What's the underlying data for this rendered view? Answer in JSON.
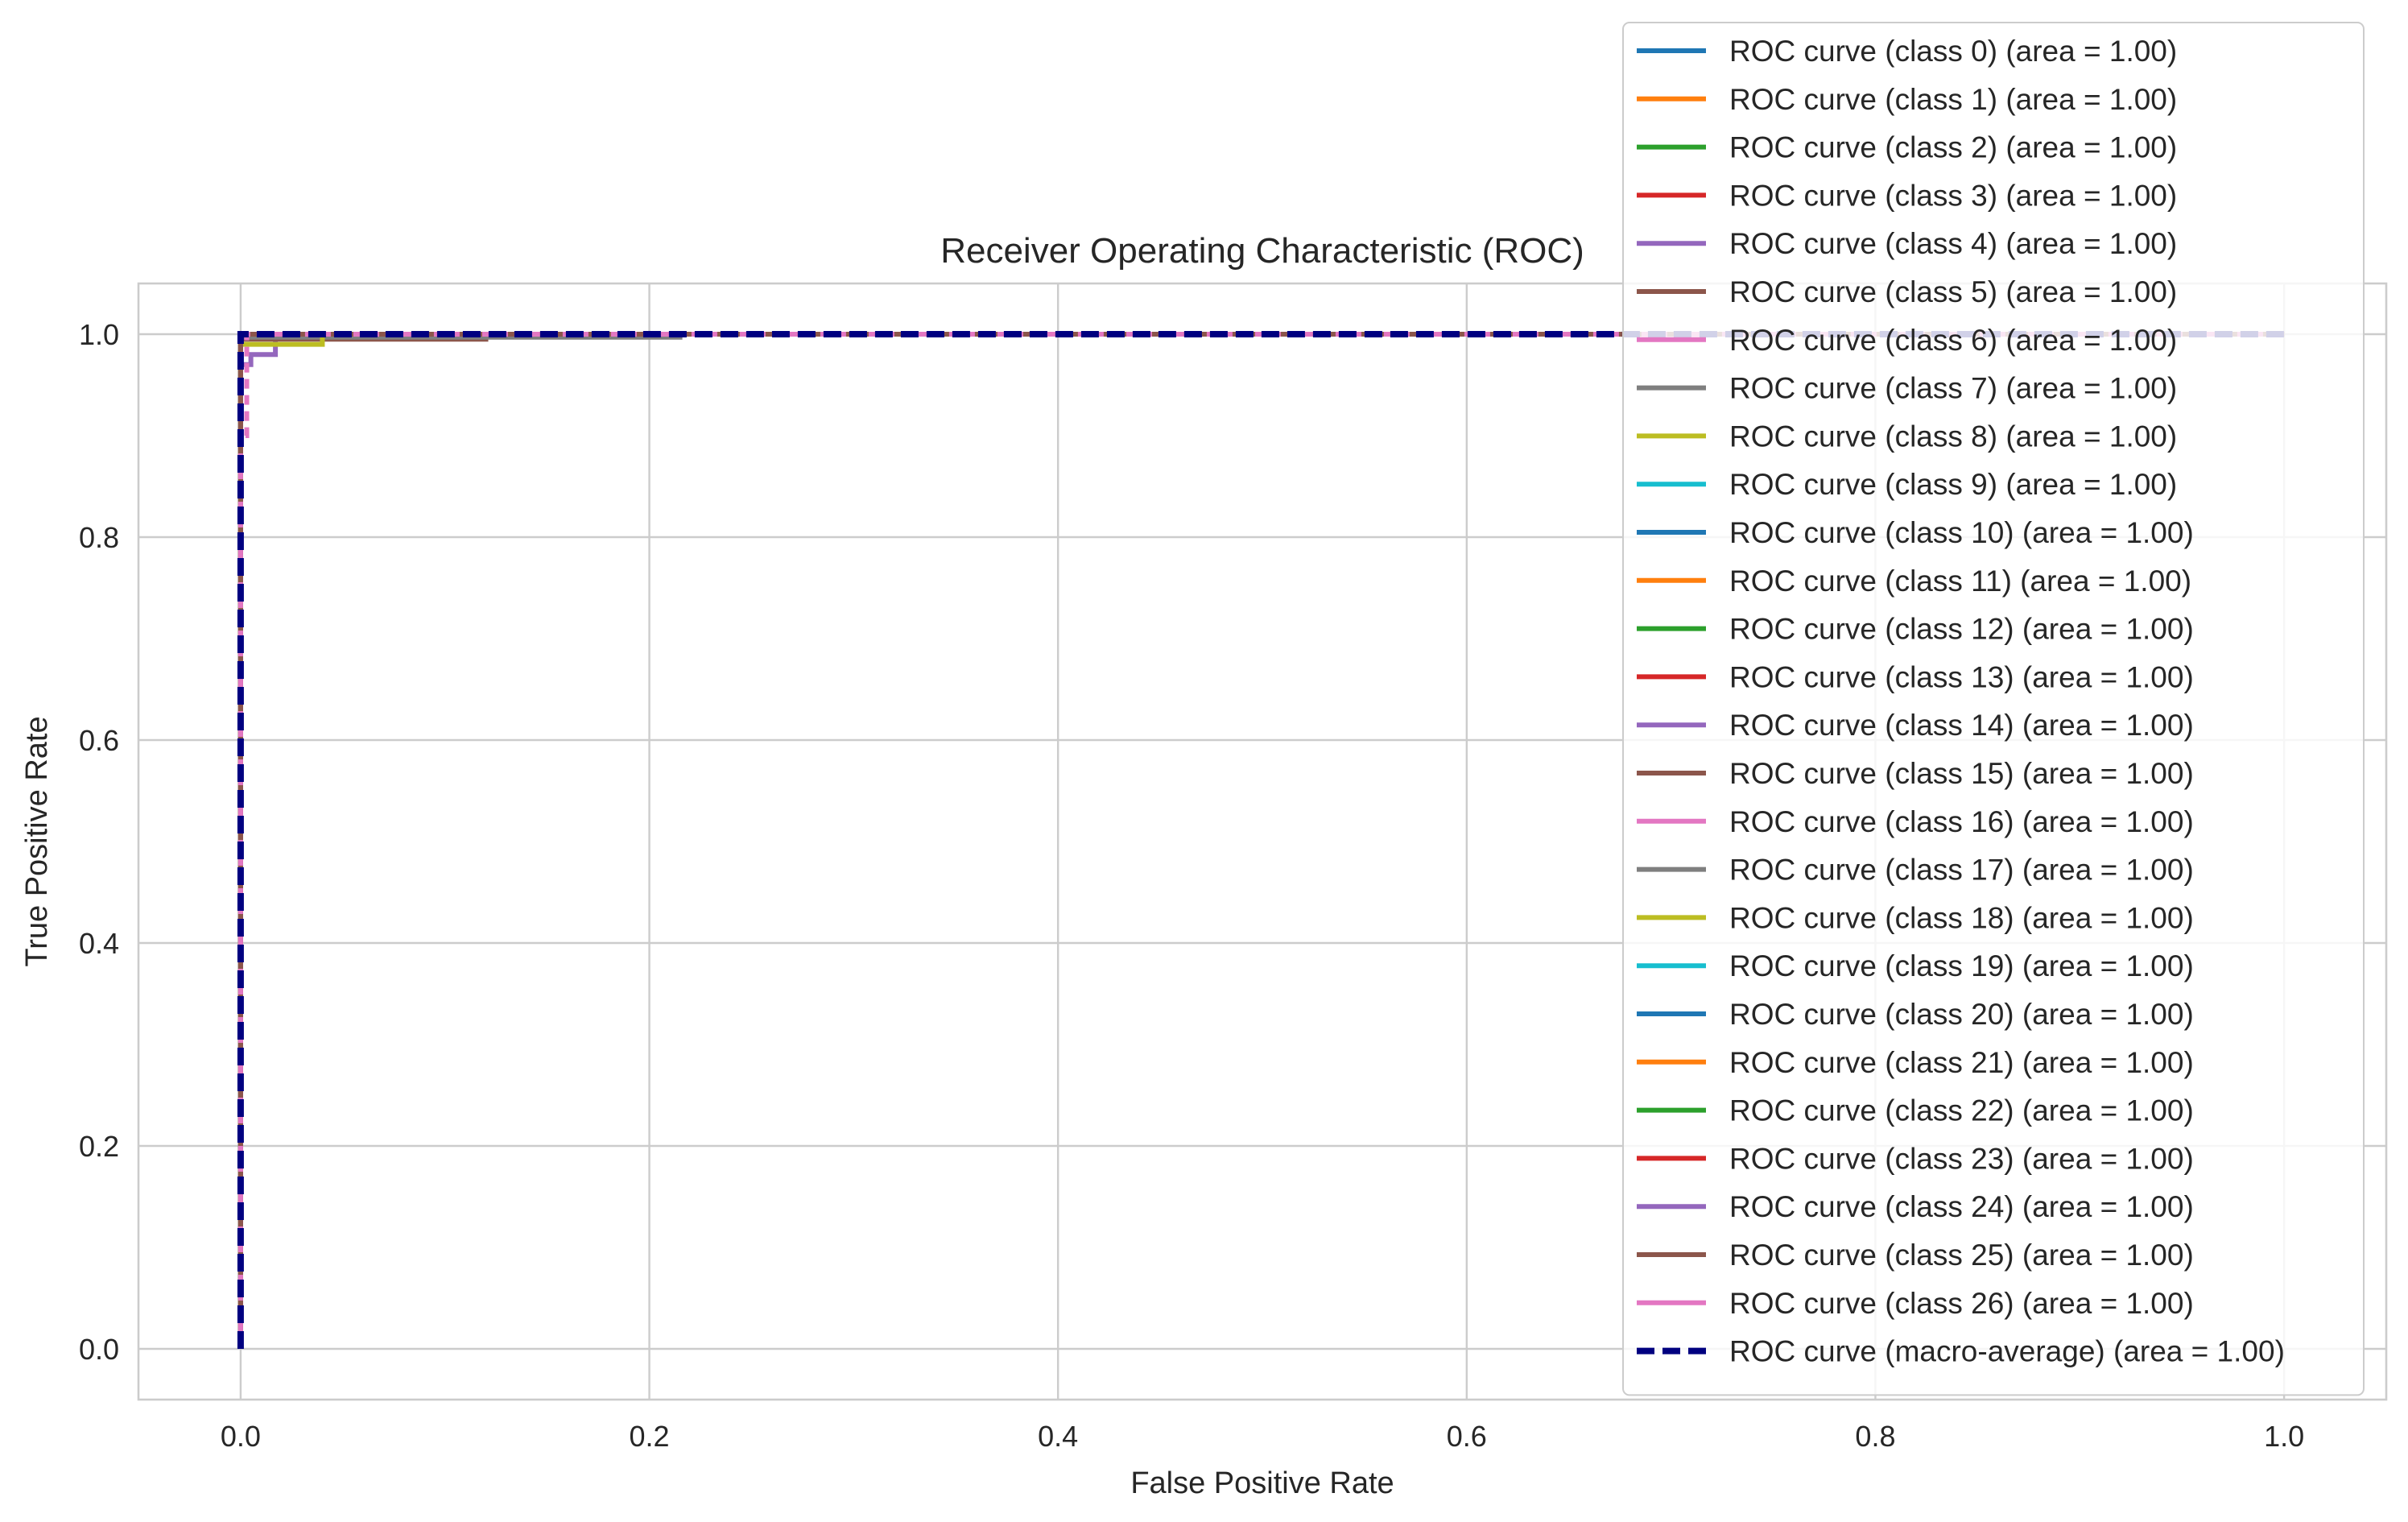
{
  "chart_data": {
    "type": "line",
    "title": "Receiver Operating Characteristic (ROC)",
    "xlabel": "False Positive Rate",
    "ylabel": "True Positive Rate",
    "xlim": [
      -0.05,
      1.05
    ],
    "ylim": [
      -0.05,
      1.05
    ],
    "xticks": [
      0.0,
      0.2,
      0.4,
      0.6,
      0.8,
      1.0
    ],
    "yticks": [
      0.0,
      0.2,
      0.4,
      0.6,
      0.8,
      1.0
    ],
    "xtick_labels": [
      "0.0",
      "0.2",
      "0.4",
      "0.6",
      "0.8",
      "1.0"
    ],
    "ytick_labels": [
      "0.0",
      "0.2",
      "0.4",
      "0.6",
      "0.8",
      "1.0"
    ],
    "grid": true,
    "legend_position": "upper-right",
    "series": [
      {
        "name": "ROC curve (class 0) (area = 1.00)",
        "color": "#1f77b4",
        "x": [
          0,
          0,
          1
        ],
        "y": [
          0,
          1,
          1
        ]
      },
      {
        "name": "ROC curve (class 1) (area = 1.00)",
        "color": "#ff7f0e",
        "x": [
          0,
          0,
          1
        ],
        "y": [
          0,
          1,
          1
        ]
      },
      {
        "name": "ROC curve (class 2) (area = 1.00)",
        "color": "#2ca02c",
        "x": [
          0,
          0,
          1
        ],
        "y": [
          0,
          1,
          1
        ]
      },
      {
        "name": "ROC curve (class 3) (area = 1.00)",
        "color": "#d62728",
        "x": [
          0,
          0,
          1
        ],
        "y": [
          0,
          1,
          1
        ]
      },
      {
        "name": "ROC curve (class 4) (area = 1.00)",
        "color": "#9467bd",
        "x": [
          0,
          0,
          0.005,
          0.005,
          0.017,
          0.017,
          1
        ],
        "y": [
          0,
          0.97,
          0.97,
          0.98,
          0.98,
          1,
          1
        ]
      },
      {
        "name": "ROC curve (class 5) (area = 1.00)",
        "color": "#8c564b",
        "x": [
          0,
          0,
          0.12,
          0.12,
          1
        ],
        "y": [
          0,
          0.995,
          0.995,
          1,
          1
        ]
      },
      {
        "name": "ROC curve (class 6) (area = 1.00)",
        "color": "#e377c2",
        "x": [
          0,
          0,
          1
        ],
        "y": [
          0,
          1,
          1
        ]
      },
      {
        "name": "ROC curve (class 7) (area = 1.00)",
        "color": "#7f7f7f",
        "x": [
          0,
          0,
          0.215,
          0.215,
          1
        ],
        "y": [
          0,
          0.997,
          0.997,
          1,
          1
        ]
      },
      {
        "name": "ROC curve (class 8) (area = 1.00)",
        "color": "#bcbd22",
        "x": [
          0,
          0,
          0.04,
          0.04,
          1
        ],
        "y": [
          0,
          0.99,
          0.99,
          1,
          1
        ]
      },
      {
        "name": "ROC curve (class 9) (area = 1.00)",
        "color": "#17becf",
        "x": [
          0,
          0,
          1
        ],
        "y": [
          0,
          1,
          1
        ]
      },
      {
        "name": "ROC curve (class 10) (area = 1.00)",
        "color": "#1f77b4",
        "x": [
          0,
          0,
          1
        ],
        "y": [
          0,
          1,
          1
        ]
      },
      {
        "name": "ROC curve (class 11) (area = 1.00)",
        "color": "#ff7f0e",
        "x": [
          0,
          0,
          1
        ],
        "y": [
          0,
          1,
          1
        ]
      },
      {
        "name": "ROC curve (class 12) (area = 1.00)",
        "color": "#2ca02c",
        "x": [
          0,
          0,
          1
        ],
        "y": [
          0,
          1,
          1
        ]
      },
      {
        "name": "ROC curve (class 13) (area = 1.00)",
        "color": "#d62728",
        "x": [
          0,
          0,
          1
        ],
        "y": [
          0,
          1,
          1
        ]
      },
      {
        "name": "ROC curve (class 14) (area = 1.00)",
        "color": "#9467bd",
        "x": [
          0,
          0,
          1
        ],
        "y": [
          0,
          1,
          1
        ]
      },
      {
        "name": "ROC curve (class 15) (area = 1.00)",
        "color": "#8c564b",
        "x": [
          0,
          0,
          1
        ],
        "y": [
          0,
          1,
          1
        ]
      },
      {
        "name": "ROC curve (class 16) (area = 1.00)",
        "color": "#e377c2",
        "x": [
          0,
          0,
          1
        ],
        "y": [
          0,
          1,
          1
        ]
      },
      {
        "name": "ROC curve (class 17) (area = 1.00)",
        "color": "#7f7f7f",
        "x": [
          0,
          0,
          1
        ],
        "y": [
          0,
          1,
          1
        ]
      },
      {
        "name": "ROC curve (class 18) (area = 1.00)",
        "color": "#bcbd22",
        "x": [
          0,
          0,
          1
        ],
        "y": [
          0,
          1,
          1
        ]
      },
      {
        "name": "ROC curve (class 19) (area = 1.00)",
        "color": "#17becf",
        "x": [
          0,
          0,
          1
        ],
        "y": [
          0,
          1,
          1
        ]
      },
      {
        "name": "ROC curve (class 20) (area = 1.00)",
        "color": "#1f77b4",
        "x": [
          0,
          0,
          1
        ],
        "y": [
          0,
          1,
          1
        ]
      },
      {
        "name": "ROC curve (class 21) (area = 1.00)",
        "color": "#ff7f0e",
        "x": [
          0,
          0,
          1
        ],
        "y": [
          0,
          1,
          1
        ]
      },
      {
        "name": "ROC curve (class 22) (area = 1.00)",
        "color": "#2ca02c",
        "x": [
          0,
          0,
          1
        ],
        "y": [
          0,
          1,
          1
        ]
      },
      {
        "name": "ROC curve (class 23) (area = 1.00)",
        "color": "#d62728",
        "x": [
          0,
          0,
          1
        ],
        "y": [
          0,
          1,
          1
        ]
      },
      {
        "name": "ROC curve (class 24) (area = 1.00)",
        "color": "#9467bd",
        "x": [
          0,
          0,
          1
        ],
        "y": [
          0,
          1,
          1
        ]
      },
      {
        "name": "ROC curve (class 25) (area = 1.00)",
        "color": "#8c564b",
        "x": [
          0,
          0,
          1
        ],
        "y": [
          0,
          1,
          1
        ]
      },
      {
        "name": "ROC curve (class 26) (area = 1.00)",
        "color": "#e377c2",
        "x": [
          0,
          0,
          0.003,
          0.003,
          1
        ],
        "y": [
          0,
          0.9,
          0.9,
          1,
          1
        ],
        "dashed": true
      },
      {
        "name": "ROC curve (macro-average) (area = 1.00)",
        "color": "#000080",
        "x": [
          0,
          0,
          1
        ],
        "y": [
          0,
          1,
          1
        ],
        "dashed": true
      }
    ]
  }
}
